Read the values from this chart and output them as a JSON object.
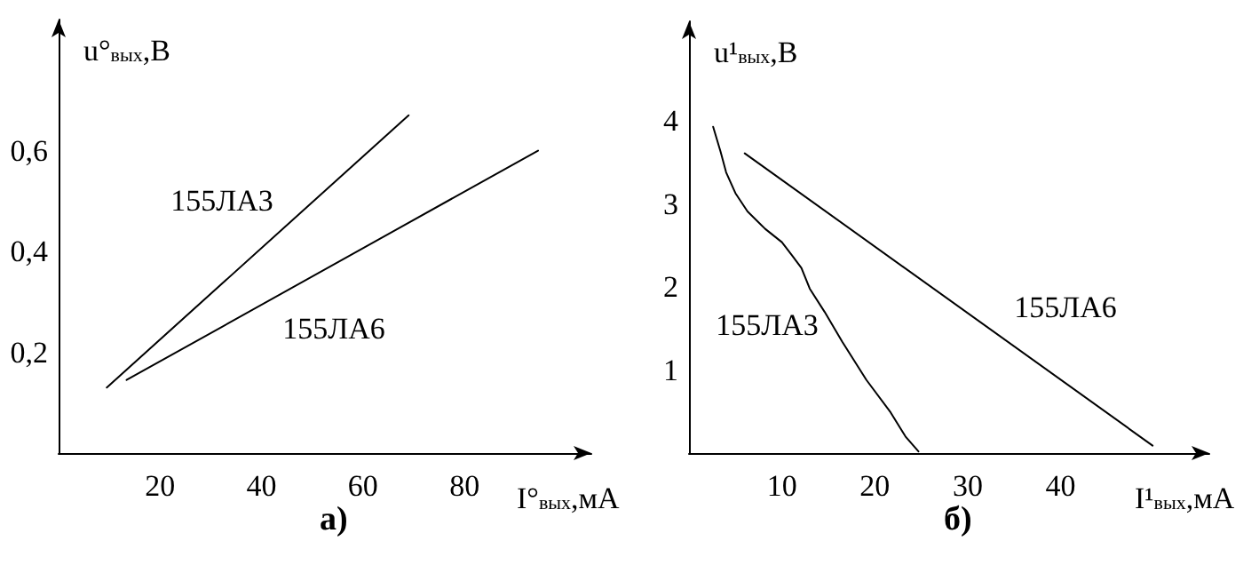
{
  "chart_data": [
    {
      "type": "line",
      "title": "а)",
      "xlabel": "I°$_{вых}$,мА",
      "ylabel": "u°$_{вых}$,В",
      "xlim": [
        0,
        105
      ],
      "ylim": [
        0,
        0.86
      ],
      "xticks": [
        20,
        40,
        60,
        80
      ],
      "yticks": [
        {
          "value": 0.2,
          "label": "0,2"
        },
        {
          "value": 0.4,
          "label": "0,4"
        },
        {
          "value": 0.6,
          "label": "0,6"
        }
      ],
      "grid": false,
      "marker": "none",
      "line_style": "solid",
      "series": [
        {
          "name": "155ЛА3",
          "color": "#000000",
          "x": [
            9.5,
            69
          ],
          "values": [
            0.13,
            0.67
          ]
        },
        {
          "name": "155ЛА6",
          "color": "#000000",
          "x": [
            13.4,
            94.5
          ],
          "values": [
            0.145,
            0.6
          ]
        }
      ]
    },
    {
      "type": "line",
      "title": "б)",
      "xlabel": "I¹$_{вых}$,мА",
      "ylabel": "u¹$_{вых}$,В",
      "xlim": [
        0,
        56
      ],
      "ylim": [
        0,
        5.2
      ],
      "xticks": [
        10,
        20,
        30,
        40
      ],
      "yticks": [
        1,
        2,
        3,
        4
      ],
      "grid": false,
      "marker": "none",
      "line_style": "solid",
      "series": [
        {
          "name": "155ЛА3",
          "color": "#000000",
          "x": [
            2.6,
            3.4,
            4.0,
            5.0,
            6.3,
            8.2,
            10.0,
            11.1,
            12.1,
            13.0,
            14.6,
            16.5,
            19.1,
            21.7,
            23.3,
            24.7
          ],
          "values": [
            3.93,
            3.63,
            3.38,
            3.13,
            2.91,
            2.7,
            2.54,
            2.38,
            2.23,
            1.98,
            1.7,
            1.34,
            0.88,
            0.49,
            0.2,
            0.02
          ]
        },
        {
          "name": "155ЛА6",
          "color": "#000000",
          "x": [
            6.0,
            49.9
          ],
          "values": [
            3.61,
            0.09
          ]
        }
      ]
    }
  ]
}
